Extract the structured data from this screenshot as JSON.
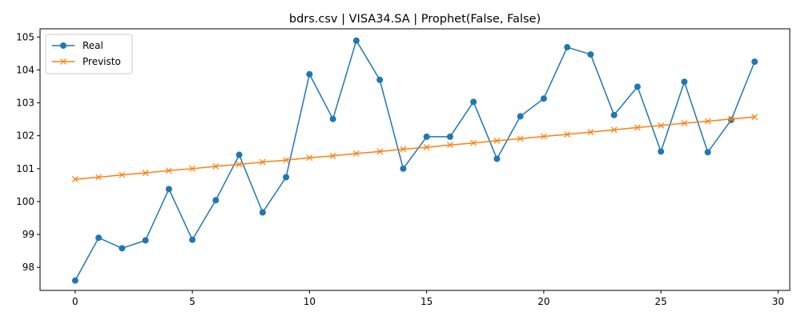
{
  "chart_data": {
    "type": "line",
    "title": "bdrs.csv | VISA34.SA | Prophet(False, False)",
    "xlabel": "",
    "ylabel": "",
    "xlim": [
      -1.5,
      30.5
    ],
    "ylim": [
      97.3,
      105.25
    ],
    "xticks": [
      0,
      5,
      10,
      15,
      20,
      25,
      30
    ],
    "yticks": [
      98,
      99,
      100,
      101,
      102,
      103,
      104,
      105
    ],
    "grid": false,
    "legend_position": "upper-left",
    "x": [
      0,
      1,
      2,
      3,
      4,
      5,
      6,
      7,
      8,
      9,
      10,
      11,
      12,
      13,
      14,
      15,
      16,
      17,
      18,
      19,
      20,
      21,
      22,
      23,
      24,
      25,
      26,
      27,
      28,
      29
    ],
    "series": [
      {
        "name": "Real",
        "color": "#1f77b4",
        "marker": "circle",
        "values": [
          97.6,
          98.9,
          98.58,
          98.82,
          100.38,
          98.84,
          100.04,
          101.42,
          99.67,
          100.74,
          103.87,
          102.51,
          104.89,
          103.7,
          101.0,
          101.97,
          101.97,
          103.03,
          101.3,
          102.59,
          103.13,
          104.69,
          104.47,
          102.63,
          103.49,
          101.52,
          103.64,
          101.5,
          102.48,
          104.25
        ]
      },
      {
        "name": "Previsto",
        "color": "#ff7f0e",
        "marker": "x",
        "values": [
          100.68,
          100.74,
          100.81,
          100.87,
          100.94,
          101.0,
          101.07,
          101.13,
          101.2,
          101.26,
          101.33,
          101.39,
          101.46,
          101.52,
          101.59,
          101.65,
          101.72,
          101.78,
          101.85,
          101.91,
          101.98,
          102.04,
          102.11,
          102.18,
          102.25,
          102.31,
          102.38,
          102.44,
          102.51,
          102.57
        ]
      }
    ]
  }
}
